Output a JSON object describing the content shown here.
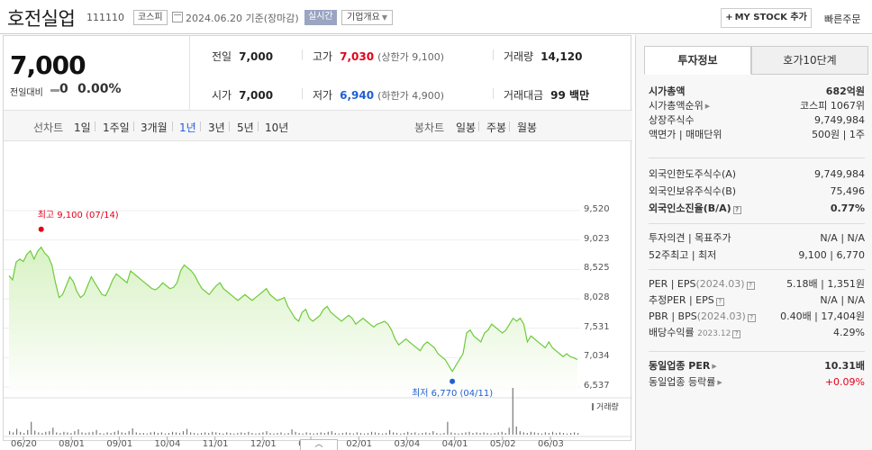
{
  "header": {
    "company": "호전실업",
    "code": "111110",
    "market": "코스피",
    "date_text": "2024.06.20  기준(장마감)",
    "realtime": "실시간",
    "overview": "기업개요",
    "mystock": "MY STOCK 추가",
    "quick_order": "빠른주문"
  },
  "price": {
    "current": "7,000",
    "vs_label": "전일대비",
    "vs_value": "0",
    "vs_pct": "0.00%"
  },
  "quote": {
    "prev_label": "전일",
    "prev": "7,000",
    "open_label": "시가",
    "open": "7,000",
    "high_label": "고가",
    "high": "7,030",
    "upper_limit": "(상한가 9,100)",
    "low_label": "저가",
    "low": "6,940",
    "lower_limit": "(하한가 4,900)",
    "volume_label": "거래량",
    "volume": "14,120",
    "amount_label": "거래대금",
    "amount": "99 백만"
  },
  "period": {
    "line_label": "선차트",
    "line_items": [
      "1일",
      "1주일",
      "3개월",
      "1년",
      "3년",
      "5년",
      "10년"
    ],
    "active": "1년",
    "candle_label": "봉차트",
    "candle_items": [
      "일봉",
      "주봉",
      "월봉"
    ]
  },
  "chart_data": {
    "type": "area",
    "yticks": [
      "9,520",
      "9,023",
      "8,525",
      "8,028",
      "7,531",
      "7,034",
      "6,537"
    ],
    "ylim": [
      6537,
      9520
    ],
    "xticks": [
      "06/20",
      "08/01",
      "09/01",
      "10/04",
      "11/01",
      "12/01",
      "01/02",
      "02/01",
      "03/04",
      "04/01",
      "05/02",
      "06/03"
    ],
    "high_annotation": "최고 9,100 (07/14)",
    "low_annotation": "최저 6,770 (04/11)",
    "volume_legend": "거래량",
    "colors": {
      "line": "#6ecb3c",
      "fill_top": "#d8f2c4",
      "fill_bottom": "#ffffff",
      "high_dot": "#e3001b",
      "low_dot": "#1f5fd1"
    },
    "series": [
      8420,
      8350,
      8650,
      8700,
      8660,
      8780,
      8840,
      8700,
      8830,
      8900,
      8800,
      8740,
      8600,
      8300,
      8050,
      8100,
      8250,
      8400,
      8320,
      8150,
      8050,
      8100,
      8250,
      8400,
      8300,
      8200,
      8100,
      8080,
      8200,
      8350,
      8450,
      8400,
      8350,
      8300,
      8500,
      8450,
      8400,
      8350,
      8300,
      8250,
      8200,
      8180,
      8230,
      8300,
      8250,
      8200,
      8220,
      8300,
      8500,
      8600,
      8550,
      8500,
      8420,
      8300,
      8200,
      8150,
      8100,
      8180,
      8250,
      8300,
      8200,
      8150,
      8100,
      8050,
      8000,
      8050,
      8100,
      8050,
      8000,
      8050,
      8100,
      8150,
      8200,
      8100,
      8050,
      8000,
      8020,
      8050,
      7900,
      7800,
      7700,
      7650,
      7800,
      7850,
      7700,
      7650,
      7700,
      7750,
      7850,
      7900,
      7800,
      7750,
      7700,
      7650,
      7700,
      7750,
      7700,
      7600,
      7650,
      7700,
      7650,
      7600,
      7550,
      7600,
      7620,
      7650,
      7600,
      7500,
      7350,
      7250,
      7300,
      7350,
      7300,
      7250,
      7200,
      7150,
      7250,
      7300,
      7250,
      7200,
      7100,
      7050,
      7000,
      6900,
      6800,
      6900,
      7000,
      7100,
      7450,
      7500,
      7400,
      7350,
      7300,
      7450,
      7500,
      7600,
      7550,
      7500,
      7450,
      7500,
      7600,
      7700,
      7650,
      7700,
      7600,
      7300,
      7400,
      7350,
      7300,
      7250,
      7200,
      7300,
      7200,
      7150,
      7100,
      7050,
      7100,
      7050,
      7030,
      7000
    ],
    "volume": [
      6,
      4,
      10,
      5,
      3,
      8,
      22,
      7,
      4,
      3,
      5,
      6,
      12,
      4,
      3,
      5,
      4,
      3,
      6,
      9,
      4,
      3,
      4,
      5,
      8,
      3,
      2,
      4,
      3,
      5,
      7,
      4,
      3,
      6,
      11,
      4,
      3,
      3,
      2,
      4,
      5,
      3,
      4,
      2,
      3,
      5,
      4,
      3,
      6,
      10,
      4,
      3,
      2,
      3,
      4,
      3,
      5,
      4,
      3,
      2,
      4,
      3,
      2,
      3,
      4,
      3,
      5,
      3,
      2,
      3,
      4,
      6,
      3,
      2,
      3,
      4,
      2,
      3,
      9,
      5,
      3,
      2,
      4,
      3,
      2,
      3,
      4,
      3,
      5,
      6,
      3,
      2,
      3,
      4,
      3,
      2,
      4,
      3,
      2,
      3,
      5,
      4,
      3,
      2,
      3,
      8,
      4,
      3,
      2,
      3,
      5,
      3,
      4,
      2,
      3,
      4,
      3,
      6,
      3,
      2,
      3,
      22,
      4,
      3,
      2,
      3,
      4,
      5,
      3,
      4,
      3,
      4,
      3,
      2,
      3,
      4,
      5,
      3,
      12,
      80,
      14,
      6,
      4,
      3,
      5,
      4,
      3,
      2,
      4,
      3,
      5,
      3,
      4,
      3,
      2,
      3,
      4,
      3
    ]
  },
  "tabs": {
    "invest_info": "투자정보",
    "orderbook": "호가10단계"
  },
  "info": {
    "market_cap_label": "시가총액",
    "market_cap": "682억원",
    "cap_rank_label": "시가총액순위",
    "cap_rank": "코스피 1067위",
    "shares_label": "상장주식수",
    "shares": "9,749,984",
    "face_label": "액면가 | 매매단위",
    "face": "500원 | 1주",
    "foreign_limit_label": "외국인한도주식수(A)",
    "foreign_limit": "9,749,984",
    "foreign_hold_label": "외국인보유주식수(B)",
    "foreign_hold": "75,496",
    "foreign_ratio_label": "외국인소진율(B/A)",
    "foreign_ratio": "0.77%",
    "opinion_label": "투자의견 | 목표주가",
    "opinion": "N/A | N/A",
    "range52_label": "52주최고 | 최저",
    "range52": "9,100 | 6,770",
    "per_label": "PER | EPS",
    "per_date": "(2024.03)",
    "per": "5.18배 | 1,351원",
    "est_per_label": "추정PER | EPS",
    "est_per": "N/A | N/A",
    "pbr_label": "PBR | BPS",
    "pbr_date": "(2024.03)",
    "pbr": "0.40배 | 17,404원",
    "div_label": "배당수익률",
    "div_date": "2023.12",
    "div": "4.29%",
    "ind_per_label": "동일업종 PER",
    "ind_per": "10.31배",
    "ind_chg_label": "동일업종 등락률",
    "ind_chg": "+0.09%"
  }
}
